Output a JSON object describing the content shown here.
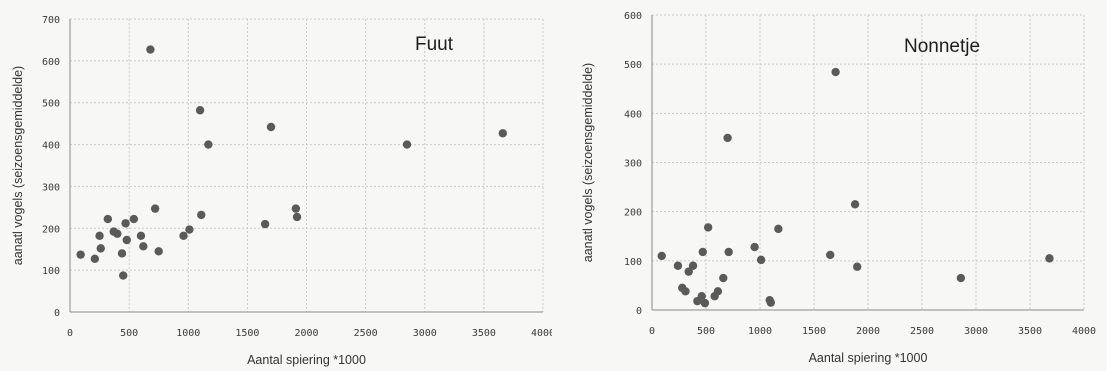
{
  "chart_data": [
    {
      "type": "scatter",
      "title": "Fuut",
      "xlabel": "Aantal spiering *1000",
      "ylabel": "aanatl vogels (seizoensgemiddelde)",
      "xlim": [
        0,
        4000
      ],
      "ylim": [
        0,
        700
      ],
      "xticks": [
        0,
        500,
        1000,
        1500,
        2000,
        2500,
        3000,
        3500,
        4000
      ],
      "yticks": [
        0,
        100,
        200,
        300,
        400,
        500,
        600,
        700
      ],
      "grid": true,
      "marker_color": "#5a5a5a",
      "points": [
        [
          90,
          137
        ],
        [
          210,
          127
        ],
        [
          250,
          182
        ],
        [
          260,
          152
        ],
        [
          320,
          222
        ],
        [
          370,
          192
        ],
        [
          400,
          187
        ],
        [
          440,
          140
        ],
        [
          450,
          87
        ],
        [
          470,
          212
        ],
        [
          480,
          172
        ],
        [
          540,
          222
        ],
        [
          600,
          182
        ],
        [
          620,
          157
        ],
        [
          680,
          627
        ],
        [
          720,
          247
        ],
        [
          750,
          145
        ],
        [
          960,
          182
        ],
        [
          1010,
          197
        ],
        [
          1100,
          482
        ],
        [
          1110,
          232
        ],
        [
          1170,
          400
        ],
        [
          1650,
          210
        ],
        [
          1700,
          442
        ],
        [
          1910,
          247
        ],
        [
          1920,
          227
        ],
        [
          2850,
          400
        ],
        [
          3660,
          427
        ]
      ]
    },
    {
      "type": "scatter",
      "title": "Nonnetje",
      "xlabel": "Aantal spiering *1000",
      "ylabel": "aanatl vogels (seizoensgemiddelde)",
      "xlim": [
        0,
        4000
      ],
      "ylim": [
        0,
        600
      ],
      "xticks": [
        0,
        500,
        1000,
        1500,
        2000,
        2500,
        3000,
        3500,
        4000
      ],
      "yticks": [
        0,
        100,
        200,
        300,
        400,
        500,
        600
      ],
      "grid": true,
      "marker_color": "#5a5a5a",
      "points": [
        [
          90,
          110
        ],
        [
          240,
          90
        ],
        [
          280,
          45
        ],
        [
          310,
          38
        ],
        [
          340,
          78
        ],
        [
          380,
          90
        ],
        [
          420,
          18
        ],
        [
          460,
          28
        ],
        [
          470,
          118
        ],
        [
          490,
          14
        ],
        [
          520,
          168
        ],
        [
          580,
          28
        ],
        [
          610,
          38
        ],
        [
          660,
          65
        ],
        [
          700,
          350
        ],
        [
          710,
          118
        ],
        [
          950,
          128
        ],
        [
          1010,
          102
        ],
        [
          1090,
          20
        ],
        [
          1100,
          15
        ],
        [
          1170,
          165
        ],
        [
          1650,
          112
        ],
        [
          1700,
          484
        ],
        [
          1880,
          215
        ],
        [
          1900,
          88
        ],
        [
          2860,
          65
        ],
        [
          3680,
          105
        ]
      ]
    }
  ]
}
